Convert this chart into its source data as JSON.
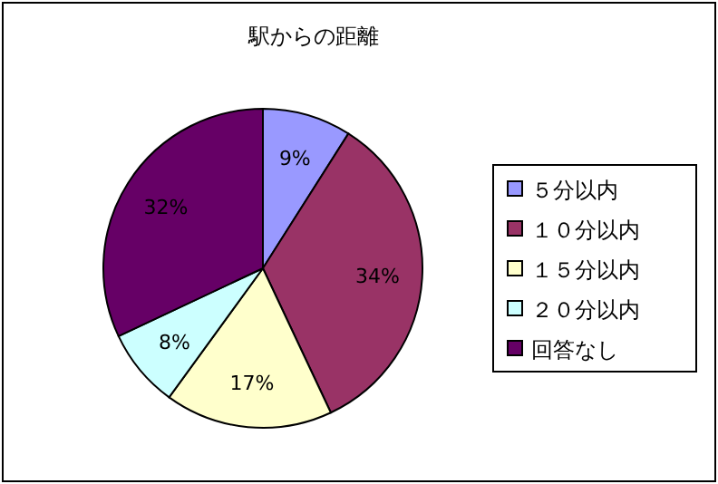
{
  "chart_data": {
    "type": "pie",
    "title": "駅からの距離",
    "categories": [
      "５分以内",
      "１０分以内",
      "１５分以内",
      "２０分以内",
      "回答なし"
    ],
    "values": [
      9,
      34,
      17,
      8,
      32
    ],
    "value_labels": [
      "9%",
      "34%",
      "17%",
      "8%",
      "32%"
    ],
    "colors": [
      "#9999ff",
      "#993366",
      "#ffffcc",
      "#ccffff",
      "#660066"
    ],
    "legend": "right"
  }
}
